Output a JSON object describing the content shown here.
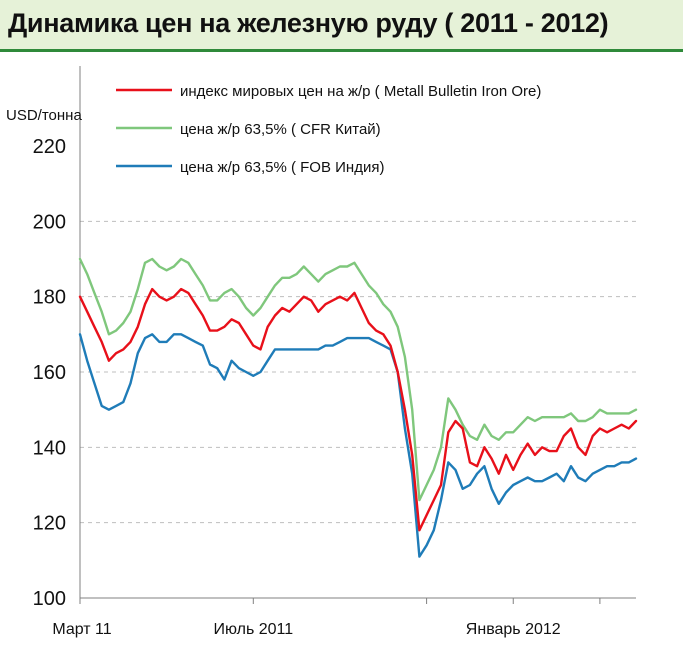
{
  "title": "Динамика цен на железную руду  ( 2011 - 2012)",
  "colors": {
    "background": "#ffffff",
    "title_band": "#e6f2d8",
    "title_border": "#2f8a3a",
    "grid": "#bfbfbf"
  },
  "chart_data": {
    "type": "line",
    "title": "Динамика цен на железную руду  ( 2011 - 2012)",
    "ylabel": "USD/тонна",
    "xlabel": "",
    "ylim": [
      100,
      220
    ],
    "yticks": [
      100,
      120,
      140,
      160,
      180,
      200,
      220
    ],
    "xlim": [
      0,
      77
    ],
    "x_tick_labels": [
      {
        "x": 0,
        "label": "Март 11"
      },
      {
        "x": 24,
        "label": "Июль 2011"
      },
      {
        "x": 60,
        "label": "Январь 2012"
      }
    ],
    "x_minor_ticks": [
      0,
      24,
      48,
      60,
      72
    ],
    "grid": "horizontal dashed",
    "legend_position": "top",
    "series": [
      {
        "name": "индекс мировых цен на ж/р  ( Metall Bulletin Iron Ore)",
        "color": "#e8101a",
        "x": [
          0,
          1,
          2,
          3,
          4,
          5,
          6,
          7,
          8,
          9,
          10,
          11,
          12,
          13,
          14,
          15,
          16,
          17,
          18,
          19,
          20,
          21,
          22,
          23,
          24,
          25,
          26,
          27,
          28,
          29,
          30,
          31,
          32,
          33,
          34,
          35,
          36,
          37,
          38,
          39,
          40,
          41,
          42,
          43,
          44,
          45,
          46,
          47,
          48,
          49,
          50,
          51,
          52,
          53,
          54,
          55,
          56,
          57,
          58,
          59,
          60,
          61,
          62,
          63,
          64,
          65,
          66,
          67,
          68,
          69,
          70,
          71,
          72,
          73,
          74,
          75,
          76,
          77
        ],
        "values": [
          180,
          176,
          172,
          168,
          163,
          165,
          166,
          168,
          172,
          178,
          182,
          180,
          179,
          180,
          182,
          181,
          178,
          175,
          171,
          171,
          172,
          174,
          173,
          170,
          167,
          166,
          172,
          175,
          177,
          176,
          178,
          180,
          179,
          176,
          178,
          179,
          180,
          179,
          181,
          177,
          173,
          171,
          170,
          167,
          160,
          150,
          138,
          118,
          122,
          126,
          130,
          144,
          147,
          145,
          136,
          135,
          140,
          137,
          133,
          138,
          134,
          138,
          141,
          138,
          140,
          139,
          139,
          143,
          145,
          140,
          138,
          143,
          145,
          144,
          145,
          146,
          145,
          147
        ]
      },
      {
        "name": "цена ж/р 63,5%  ( CFR Китай)",
        "color": "#7fc77c",
        "x": [
          0,
          1,
          2,
          3,
          4,
          5,
          6,
          7,
          8,
          9,
          10,
          11,
          12,
          13,
          14,
          15,
          16,
          17,
          18,
          19,
          20,
          21,
          22,
          23,
          24,
          25,
          26,
          27,
          28,
          29,
          30,
          31,
          32,
          33,
          34,
          35,
          36,
          37,
          38,
          39,
          40,
          41,
          42,
          43,
          44,
          45,
          46,
          47,
          48,
          49,
          50,
          51,
          52,
          53,
          54,
          55,
          56,
          57,
          58,
          59,
          60,
          61,
          62,
          63,
          64,
          65,
          66,
          67,
          68,
          69,
          70,
          71,
          72,
          73,
          74,
          75,
          76,
          77
        ],
        "values": [
          190,
          186,
          181,
          176,
          170,
          171,
          173,
          176,
          182,
          189,
          190,
          188,
          187,
          188,
          190,
          189,
          186,
          183,
          179,
          179,
          181,
          182,
          180,
          177,
          175,
          177,
          180,
          183,
          185,
          185,
          186,
          188,
          186,
          184,
          186,
          187,
          188,
          188,
          189,
          186,
          183,
          181,
          178,
          176,
          172,
          164,
          150,
          126,
          130,
          134,
          140,
          153,
          150,
          146,
          143,
          142,
          146,
          143,
          142,
          144,
          144,
          146,
          148,
          147,
          148,
          148,
          148,
          148,
          149,
          147,
          147,
          148,
          150,
          149,
          149,
          149,
          149,
          150
        ]
      },
      {
        "name": "цена ж/р 63,5%  ( FOB Индия)",
        "color": "#1f7cb8",
        "x": [
          0,
          1,
          2,
          3,
          4,
          5,
          6,
          7,
          8,
          9,
          10,
          11,
          12,
          13,
          14,
          15,
          16,
          17,
          18,
          19,
          20,
          21,
          22,
          23,
          24,
          25,
          26,
          27,
          28,
          29,
          30,
          31,
          32,
          33,
          34,
          35,
          36,
          37,
          38,
          39,
          40,
          41,
          42,
          43,
          44,
          45,
          46,
          47,
          48,
          49,
          50,
          51,
          52,
          53,
          54,
          55,
          56,
          57,
          58,
          59,
          60,
          61,
          62,
          63,
          64,
          65,
          66,
          67,
          68,
          69,
          70,
          71,
          72,
          73,
          74,
          75,
          76,
          77
        ],
        "values": [
          170,
          163,
          157,
          151,
          150,
          151,
          152,
          157,
          165,
          169,
          170,
          168,
          168,
          170,
          170,
          169,
          168,
          167,
          162,
          161,
          158,
          163,
          161,
          160,
          159,
          160,
          163,
          166,
          166,
          166,
          166,
          166,
          166,
          166,
          167,
          167,
          168,
          169,
          169,
          169,
          169,
          168,
          167,
          166,
          160,
          145,
          133,
          111,
          114,
          118,
          126,
          136,
          134,
          129,
          130,
          133,
          135,
          129,
          125,
          128,
          130,
          131,
          132,
          131,
          131,
          132,
          133,
          131,
          135,
          132,
          131,
          133,
          134,
          135,
          135,
          136,
          136,
          137
        ]
      }
    ]
  }
}
